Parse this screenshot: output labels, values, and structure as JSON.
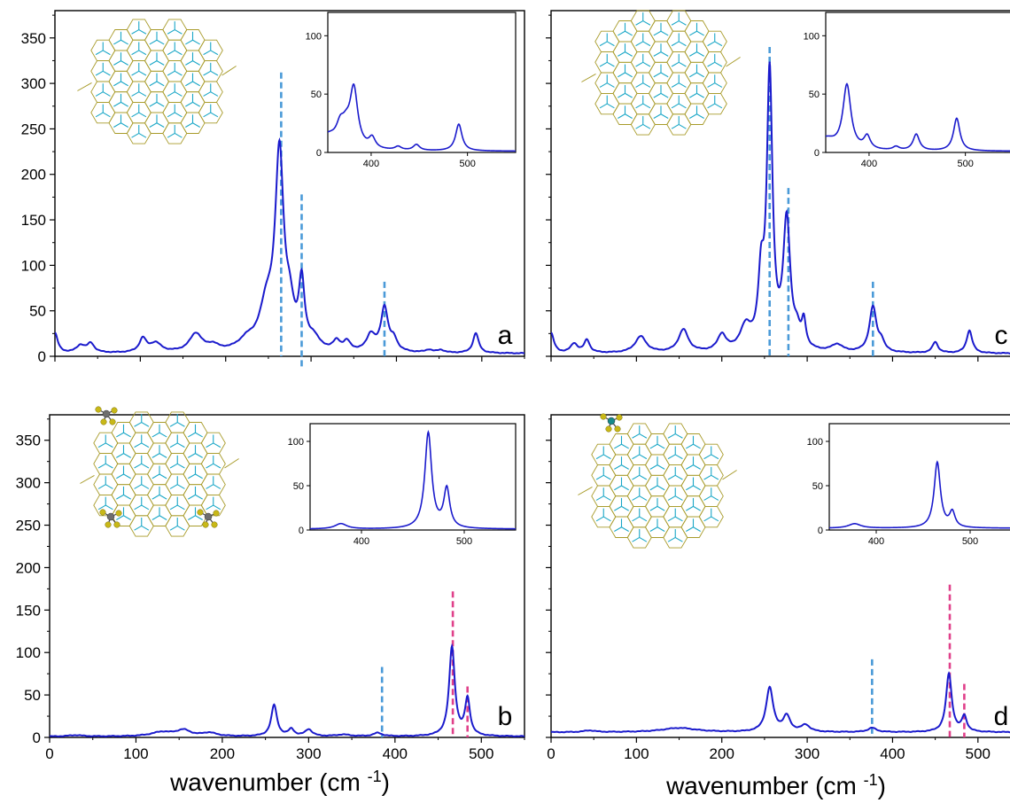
{
  "chart_data": [
    {
      "panel": "a",
      "type": "line",
      "xlim": [
        0,
        550
      ],
      "ylim": [
        0,
        380
      ],
      "xticks": [
        0,
        100,
        200,
        300,
        400,
        500
      ],
      "yticks": [
        0,
        50,
        100,
        150,
        200,
        250,
        300,
        350
      ],
      "show_xtick_labels": false,
      "show_ytick_labels": true,
      "panel_label": "a",
      "line_color": "#1a1acc",
      "marker_lines": [
        {
          "x": 265,
          "y0": 0,
          "y1": 312,
          "color": "#4a9ad8"
        },
        {
          "x": 289,
          "y0": -15,
          "y1": 178,
          "color": "#4a9ad8"
        },
        {
          "x": 386,
          "y0": 0,
          "y1": 82,
          "color": "#4a9ad8"
        }
      ],
      "peaks": [
        {
          "x": 0,
          "h": 22,
          "w": 4
        },
        {
          "x": 30,
          "h": 8,
          "w": 6
        },
        {
          "x": 42,
          "h": 10,
          "w": 5
        },
        {
          "x": 103,
          "h": 15,
          "w": 5
        },
        {
          "x": 118,
          "h": 10,
          "w": 8
        },
        {
          "x": 165,
          "h": 20,
          "w": 9
        },
        {
          "x": 185,
          "h": 6,
          "w": 8
        },
        {
          "x": 225,
          "h": 10,
          "w": 12
        },
        {
          "x": 248,
          "h": 45,
          "w": 10
        },
        {
          "x": 263,
          "h": 210,
          "w": 6
        },
        {
          "x": 275,
          "h": 35,
          "w": 6
        },
        {
          "x": 289,
          "h": 70,
          "w": 4
        },
        {
          "x": 303,
          "h": 12,
          "w": 8
        },
        {
          "x": 330,
          "h": 10,
          "w": 5
        },
        {
          "x": 342,
          "h": 10,
          "w": 5
        },
        {
          "x": 370,
          "h": 18,
          "w": 6
        },
        {
          "x": 386,
          "h": 48,
          "w": 5
        },
        {
          "x": 397,
          "h": 12,
          "w": 5
        },
        {
          "x": 438,
          "h": 3,
          "w": 5
        },
        {
          "x": 452,
          "h": 3,
          "w": 5
        },
        {
          "x": 493,
          "h": 22,
          "w": 4
        }
      ],
      "baseline": 3,
      "inset": {
        "xlim": [
          355,
          550
        ],
        "ylim": [
          0,
          120
        ],
        "xticks": [
          400,
          500
        ],
        "yticks": [
          0,
          50,
          100
        ],
        "peaks": [
          {
            "x": 355,
            "h": 12,
            "w": 12
          },
          {
            "x": 368,
            "h": 15,
            "w": 5
          },
          {
            "x": 382,
            "h": 50,
            "w": 5
          },
          {
            "x": 374,
            "h": 12,
            "w": 5
          },
          {
            "x": 401,
            "h": 9,
            "w": 4
          },
          {
            "x": 428,
            "h": 3,
            "w": 4
          },
          {
            "x": 447,
            "h": 5,
            "w": 4
          },
          {
            "x": 491,
            "h": 23,
            "w": 4
          }
        ],
        "baseline": 1
      },
      "structure": {
        "variant": "plain"
      }
    },
    {
      "panel": "c",
      "type": "line",
      "xlim": [
        0,
        550
      ],
      "ylim": [
        0,
        380
      ],
      "xticks": [
        0,
        100,
        200,
        300,
        400,
        500
      ],
      "yticks": [
        0,
        50,
        100,
        150,
        200,
        250,
        300,
        350
      ],
      "show_xtick_labels": false,
      "show_ytick_labels": false,
      "panel_label": "c",
      "line_color": "#1a1acc",
      "marker_lines": [
        {
          "x": 256,
          "y0": 0,
          "y1": 340,
          "color": "#4a9ad8"
        },
        {
          "x": 278,
          "y0": 0,
          "y1": 185,
          "color": "#4a9ad8"
        },
        {
          "x": 377,
          "y0": 0,
          "y1": 82,
          "color": "#4a9ad8"
        }
      ],
      "peaks": [
        {
          "x": 0,
          "h": 22,
          "w": 4
        },
        {
          "x": 27,
          "h": 10,
          "w": 5
        },
        {
          "x": 42,
          "h": 14,
          "w": 4
        },
        {
          "x": 105,
          "h": 18,
          "w": 8
        },
        {
          "x": 155,
          "h": 25,
          "w": 7
        },
        {
          "x": 200,
          "h": 18,
          "w": 6
        },
        {
          "x": 228,
          "h": 25,
          "w": 8
        },
        {
          "x": 246,
          "h": 70,
          "w": 4
        },
        {
          "x": 256,
          "h": 300,
          "w": 4
        },
        {
          "x": 276,
          "h": 140,
          "w": 5
        },
        {
          "x": 288,
          "h": 15,
          "w": 4
        },
        {
          "x": 296,
          "h": 28,
          "w": 3
        },
        {
          "x": 335,
          "h": 8,
          "w": 8
        },
        {
          "x": 377,
          "h": 50,
          "w": 5
        },
        {
          "x": 387,
          "h": 10,
          "w": 4
        },
        {
          "x": 450,
          "h": 12,
          "w": 4
        },
        {
          "x": 490,
          "h": 25,
          "w": 4
        }
      ],
      "baseline": 3,
      "inset": {
        "xlim": [
          355,
          550
        ],
        "ylim": [
          0,
          120
        ],
        "xticks": [
          400,
          500
        ],
        "yticks": [
          0,
          50,
          100
        ],
        "peaks": [
          {
            "x": 355,
            "h": 10,
            "w": 12
          },
          {
            "x": 377,
            "h": 55,
            "w": 5
          },
          {
            "x": 398,
            "h": 11,
            "w": 4
          },
          {
            "x": 428,
            "h": 3,
            "w": 4
          },
          {
            "x": 449,
            "h": 14,
            "w": 4
          },
          {
            "x": 491,
            "h": 28,
            "w": 4
          }
        ],
        "baseline": 1
      },
      "structure": {
        "variant": "plain"
      }
    },
    {
      "panel": "b",
      "type": "line",
      "xlim": [
        0,
        550
      ],
      "ylim": [
        0,
        380
      ],
      "xticks": [
        0,
        100,
        200,
        300,
        400,
        500
      ],
      "yticks": [
        0,
        50,
        100,
        150,
        200,
        250,
        300,
        350
      ],
      "show_xtick_labels": true,
      "show_ytick_labels": true,
      "panel_label": "b",
      "line_color": "#1a1acc",
      "marker_lines": [
        {
          "x": 385,
          "y0": 0,
          "y1": 83,
          "color": "#4a9ad8"
        },
        {
          "x": 467,
          "y0": 0,
          "y1": 172,
          "color": "#e0408a"
        },
        {
          "x": 484,
          "y0": 0,
          "y1": 60,
          "color": "#e0408a"
        }
      ],
      "peaks": [
        {
          "x": 30,
          "h": 1.5,
          "w": 10
        },
        {
          "x": 130,
          "h": 5,
          "w": 15
        },
        {
          "x": 155,
          "h": 7,
          "w": 10
        },
        {
          "x": 185,
          "h": 4,
          "w": 10
        },
        {
          "x": 260,
          "h": 37,
          "w": 4
        },
        {
          "x": 280,
          "h": 8,
          "w": 4
        },
        {
          "x": 300,
          "h": 8,
          "w": 5
        },
        {
          "x": 340,
          "h": 2,
          "w": 10
        },
        {
          "x": 380,
          "h": 4,
          "w": 6
        },
        {
          "x": 466,
          "h": 105,
          "w": 4
        },
        {
          "x": 484,
          "h": 43,
          "w": 3.5
        }
      ],
      "baseline": 1,
      "inset": {
        "xlim": [
          350,
          550
        ],
        "ylim": [
          0,
          120
        ],
        "xticks": [
          400,
          500
        ],
        "yticks": [
          0,
          50,
          100
        ],
        "peaks": [
          {
            "x": 380,
            "h": 6,
            "w": 7
          },
          {
            "x": 465,
            "h": 108,
            "w": 4
          },
          {
            "x": 483,
            "h": 44,
            "w": 3.5
          }
        ],
        "baseline": 1
      },
      "structure": {
        "variant": "clusters3"
      }
    },
    {
      "panel": "d",
      "type": "line",
      "xlim": [
        0,
        550
      ],
      "ylim": [
        0,
        380
      ],
      "xticks": [
        0,
        100,
        200,
        300,
        400,
        500
      ],
      "yticks": [
        0,
        50,
        100,
        150,
        200,
        250,
        300,
        350
      ],
      "show_xtick_labels": true,
      "show_ytick_labels": false,
      "panel_label": "d",
      "line_color": "#1a1acc",
      "marker_lines": [
        {
          "x": 376,
          "y0": 0,
          "y1": 92,
          "color": "#4a9ad8"
        },
        {
          "x": 467,
          "y0": 0,
          "y1": 180,
          "color": "#e0408a"
        },
        {
          "x": 484,
          "y0": 0,
          "y1": 63,
          "color": "#e0408a"
        }
      ],
      "peaks": [
        {
          "x": 45,
          "h": 2,
          "w": 8
        },
        {
          "x": 150,
          "h": 5,
          "w": 25
        },
        {
          "x": 256,
          "h": 52,
          "w": 5
        },
        {
          "x": 276,
          "h": 18,
          "w": 5
        },
        {
          "x": 298,
          "h": 8,
          "w": 6
        },
        {
          "x": 376,
          "h": 5,
          "w": 6
        },
        {
          "x": 466,
          "h": 69,
          "w": 4
        },
        {
          "x": 484,
          "h": 18,
          "w": 3.5
        }
      ],
      "baseline": 6,
      "inset": {
        "xlim": [
          350,
          550
        ],
        "ylim": [
          0,
          120
        ],
        "xticks": [
          400,
          500
        ],
        "yticks": [
          0,
          50,
          100
        ],
        "peaks": [
          {
            "x": 377,
            "h": 5,
            "w": 8
          },
          {
            "x": 465,
            "h": 74,
            "w": 4
          },
          {
            "x": 481,
            "h": 17,
            "w": 3.5
          }
        ],
        "baseline": 2
      },
      "structure": {
        "variant": "cluster1"
      }
    }
  ],
  "axis_title": "wavenumber (cm",
  "axis_title_sup": "-1",
  "axis_title_end": ")",
  "colors": {
    "spectrum": "#1a1acc",
    "blue_marker": "#4a9ad8",
    "pink_marker": "#e0408a",
    "lattice_cyan": "#1aa7c7",
    "lattice_olive": "#a89b2a",
    "cluster_yellow": "#c8b818",
    "cluster_gray": "#6e6e6e",
    "cluster_teal": "#168a8a"
  }
}
